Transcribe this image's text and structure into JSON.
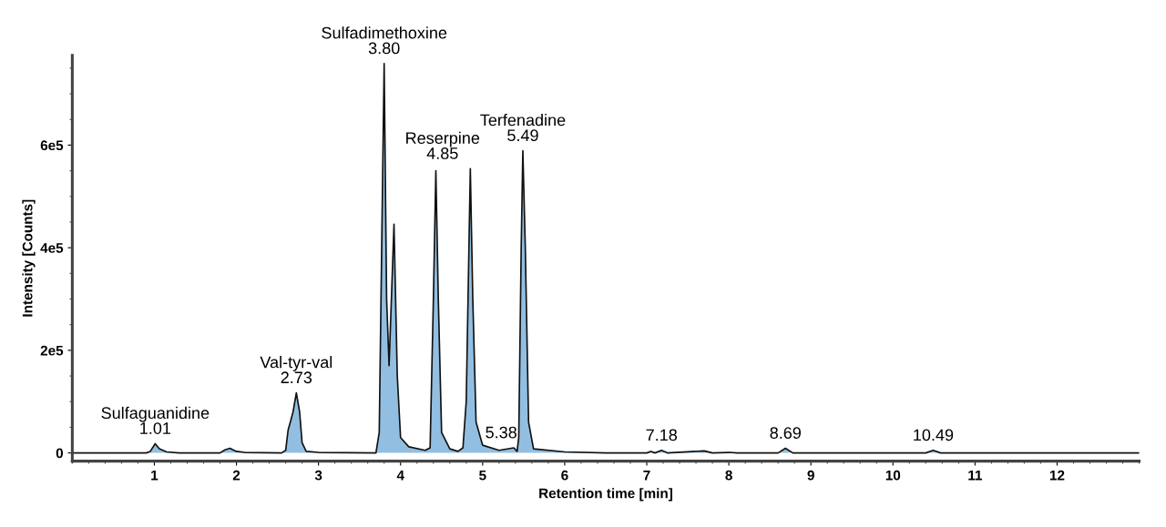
{
  "chart_data": {
    "type": "area",
    "xlabel": "Retention time [min]",
    "ylabel": "Intensity [Counts]",
    "xlim": [
      0,
      13
    ],
    "xticks": [
      1,
      2,
      3,
      4,
      5,
      6,
      7,
      8,
      9,
      10,
      11,
      12
    ],
    "ylim": [
      -16000,
      775000
    ],
    "yticks": [
      0,
      {
        "value": 200000,
        "label": "2e5"
      },
      {
        "value": 400000,
        "label": "4e5"
      },
      {
        "value": 600000,
        "label": "6e5"
      }
    ],
    "marker": "none",
    "line_style": "solid",
    "series": [
      {
        "color": "#7fb4dc",
        "x": [
          0.0,
          0.9,
          0.95,
          1.01,
          1.06,
          1.15,
          1.3,
          1.8,
          1.86,
          1.92,
          2.0,
          2.1,
          2.55,
          2.6,
          2.63,
          2.66,
          2.69,
          2.73,
          2.77,
          2.8,
          2.85,
          3.0,
          3.7,
          3.74,
          3.77,
          3.8,
          3.83,
          3.86,
          3.92,
          3.96,
          4.0,
          4.1,
          4.3,
          4.36,
          4.4,
          4.43,
          4.46,
          4.5,
          4.6,
          4.7,
          4.76,
          4.8,
          4.85,
          4.88,
          4.92,
          5.0,
          5.2,
          5.38,
          5.42,
          5.44,
          5.47,
          5.49,
          5.52,
          5.56,
          5.62,
          6.0,
          6.5,
          7.0,
          7.05,
          7.1,
          7.18,
          7.25,
          7.7,
          7.8,
          8.0,
          8.1,
          8.6,
          8.69,
          8.78,
          10.4,
          10.49,
          10.58,
          13.0
        ],
        "values": [
          0,
          0,
          3000,
          18000,
          8000,
          2000,
          0,
          0,
          6000,
          9000,
          3000,
          1000,
          0,
          5000,
          45000,
          62000,
          80000,
          117000,
          80000,
          20000,
          3000,
          1000,
          0,
          40000,
          400000,
          759000,
          300000,
          170000,
          446000,
          150000,
          30000,
          12000,
          5000,
          10000,
          300000,
          550000,
          300000,
          40000,
          8000,
          3000,
          10000,
          100000,
          554000,
          300000,
          60000,
          15000,
          5000,
          10000,
          3000,
          30000,
          400000,
          589000,
          400000,
          60000,
          8000,
          2000,
          0,
          0,
          3000,
          0,
          5000,
          0,
          4000,
          0,
          1000,
          0,
          0,
          9000,
          0,
          0,
          5000,
          0,
          0
        ]
      }
    ],
    "annotations": [
      {
        "text": "Sulfaguanidine\n1.01",
        "x": 1.01,
        "y": 18000
      },
      {
        "text": "Val-tyr-val\n2.73",
        "x": 2.73,
        "y": 117000
      },
      {
        "text": "Sulfadimethoxine\n3.80",
        "x": 3.8,
        "y": 759000
      },
      {
        "text": "Terfenadine\n5.49",
        "x": 5.49,
        "y": 589000
      },
      {
        "text": "Reserpine\n4.85",
        "x": 4.85,
        "y": 554000
      },
      {
        "text": "5.38",
        "x": 5.38,
        "y": 10000
      },
      {
        "text": "7.18",
        "x": 7.18,
        "y": 5000
      },
      {
        "text": "8.69",
        "x": 8.69,
        "y": 9000
      },
      {
        "text": "10.49",
        "x": 10.49,
        "y": 5000
      }
    ]
  }
}
